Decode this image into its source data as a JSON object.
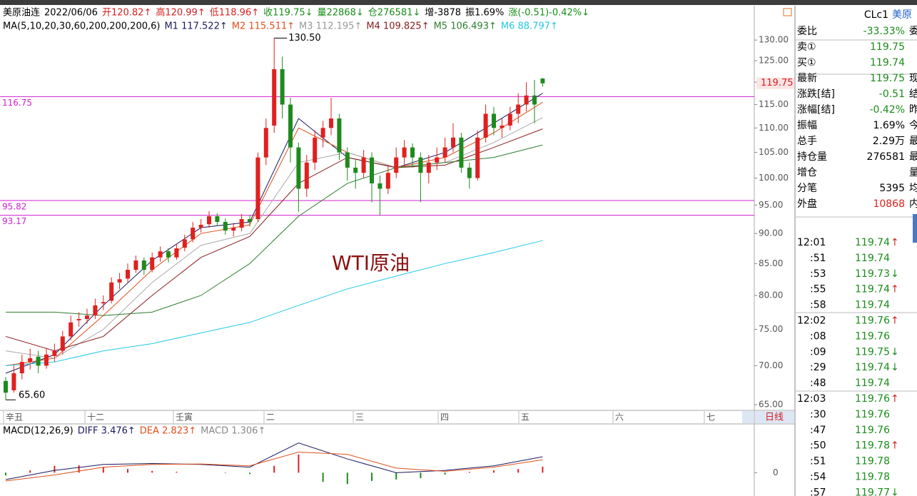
{
  "header": {
    "quote": [
      {
        "text": "美原油连",
        "color": "#000000"
      },
      {
        "text": "2022/06/06",
        "color": "#000000"
      },
      {
        "text": "开120.82↑",
        "color": "#d42020"
      },
      {
        "text": "高120.99↑",
        "color": "#d42020"
      },
      {
        "text": "低118.96↑",
        "color": "#d42020"
      },
      {
        "text": "收119.75↓",
        "color": "#1a8c1a"
      },
      {
        "text": "量22868↓",
        "color": "#1a8c1a"
      },
      {
        "text": "仓276581↓",
        "color": "#1a8c1a"
      },
      {
        "text": "增-3878",
        "color": "#000000"
      },
      {
        "text": "振1.69%",
        "color": "#000000"
      },
      {
        "text": "涨(-0.51)-0.42%↓",
        "color": "#1a8c1a"
      }
    ],
    "ma": [
      {
        "text": "MA(5,10,20,30,60,200,200,200,6)",
        "color": "#000000"
      },
      {
        "text": "M1 117.522↑",
        "color": "#1a1a60"
      },
      {
        "text": "M2 115.511↑",
        "color": "#e0501a"
      },
      {
        "text": "M3 112.195↑",
        "color": "#999999"
      },
      {
        "text": "M4 109.825↑",
        "color": "#8b1a1a"
      },
      {
        "text": "M5 106.493↑",
        "color": "#2e7d2e"
      },
      {
        "text": "M6 88.797↑",
        "color": "#22c8e8"
      }
    ]
  },
  "chart": {
    "type": "candlestick",
    "log_scale": true,
    "ylim": [
      64.3,
      138.4
    ],
    "yticks": [
      {
        "value": 130,
        "label": "130.00"
      },
      {
        "value": 125,
        "label": "125.00"
      },
      {
        "value": 120,
        "label": "120.00"
      },
      {
        "value": 115,
        "label": "115.00"
      },
      {
        "value": 110,
        "label": "110.00"
      },
      {
        "value": 105,
        "label": "105.00"
      },
      {
        "value": 100,
        "label": "100.00"
      },
      {
        "value": 95,
        "label": "95.00"
      },
      {
        "value": 90,
        "label": "90.00"
      },
      {
        "value": 85,
        "label": "85.00"
      },
      {
        "value": 80,
        "label": "80.00"
      },
      {
        "value": 75,
        "label": "75.00"
      },
      {
        "value": 70,
        "label": "70.00"
      },
      {
        "value": 65,
        "label": "65.00"
      }
    ],
    "up_color": "#e0201f",
    "down_color": "#1e8a1e",
    "candles": [
      [
        68,
        68.5,
        65.6,
        66.5
      ],
      [
        66.8,
        70,
        66.5,
        69
      ],
      [
        69,
        71.5,
        68.2,
        70.5
      ],
      [
        70.5,
        72.3,
        69.5,
        71
      ],
      [
        71.2,
        72,
        69,
        70
      ],
      [
        70,
        72.4,
        69.6,
        71.5
      ],
      [
        71.3,
        73,
        70.5,
        72
      ],
      [
        72,
        74.8,
        71.5,
        74
      ],
      [
        74,
        77,
        73.5,
        76
      ],
      [
        76.3,
        77.5,
        75.4,
        76.5
      ],
      [
        76.5,
        78,
        75.8,
        77
      ],
      [
        77,
        79.5,
        76.5,
        78.5
      ],
      [
        78.8,
        80,
        77.8,
        79
      ],
      [
        79.2,
        82.8,
        78.8,
        82
      ],
      [
        82,
        83.5,
        81,
        82.5
      ],
      [
        82.6,
        85,
        82,
        84
      ],
      [
        84,
        86.3,
        83.5,
        85.5
      ],
      [
        85.5,
        86,
        83.2,
        84
      ],
      [
        84,
        86.8,
        83.6,
        86
      ],
      [
        86,
        87.8,
        85.3,
        87
      ],
      [
        87,
        87.5,
        85.2,
        86
      ],
      [
        86,
        88.3,
        85.6,
        87.5
      ],
      [
        87.6,
        89.8,
        87,
        89
      ],
      [
        89,
        92,
        88.5,
        91
      ],
      [
        91,
        92.5,
        90.2,
        91.5
      ],
      [
        91.6,
        93.9,
        91,
        93
      ],
      [
        93,
        93.5,
        91.3,
        92
      ],
      [
        92,
        92.6,
        89.8,
        90.5
      ],
      [
        90.5,
        91.8,
        89.5,
        91
      ],
      [
        91,
        93.4,
        90.4,
        92.5
      ],
      [
        92.5,
        93.2,
        91.2,
        92
      ],
      [
        92.5,
        105,
        92,
        104
      ],
      [
        104,
        112,
        102.5,
        110
      ],
      [
        110.5,
        130.5,
        109,
        123
      ],
      [
        123,
        126,
        112,
        115
      ],
      [
        115,
        116.5,
        103,
        106
      ],
      [
        106,
        107,
        93.8,
        98
      ],
      [
        98,
        104.5,
        96.5,
        103
      ],
      [
        103,
        109.5,
        101.5,
        108
      ],
      [
        108,
        111.5,
        106,
        110
      ],
      [
        110,
        116.5,
        108.5,
        112
      ],
      [
        112,
        113,
        103.5,
        105
      ],
      [
        105,
        106,
        99.5,
        102
      ],
      [
        102,
        103.5,
        98,
        101
      ],
      [
        101,
        105.5,
        100,
        104
      ],
      [
        104,
        105,
        95.5,
        99
      ],
      [
        99,
        100.5,
        93.2,
        98
      ],
      [
        98,
        102.5,
        97,
        101
      ],
      [
        101,
        106,
        100,
        104
      ],
      [
        104,
        107.5,
        102.5,
        106
      ],
      [
        106,
        106.8,
        102,
        104
      ],
      [
        104,
        105,
        95.5,
        101
      ],
      [
        101,
        104.5,
        99,
        103
      ],
      [
        103,
        106,
        101.5,
        104
      ],
      [
        104,
        108,
        103,
        106
      ],
      [
        106,
        111,
        105,
        108
      ],
      [
        108,
        109,
        101,
        102
      ],
      [
        102,
        103,
        98,
        100
      ],
      [
        100,
        109.5,
        99.5,
        108
      ],
      [
        108,
        115,
        107,
        113
      ],
      [
        113,
        114.5,
        108.5,
        110
      ],
      [
        110,
        112,
        108,
        110.5
      ],
      [
        110.5,
        114.5,
        109.5,
        113
      ],
      [
        113,
        117.5,
        111,
        115
      ],
      [
        115,
        120,
        113.5,
        117
      ],
      [
        117,
        120.5,
        111,
        115
      ],
      [
        120.82,
        120.99,
        118.96,
        119.75
      ]
    ],
    "ma": {
      "x": [
        0,
        6,
        12,
        18,
        24,
        30,
        36,
        42,
        48,
        54,
        60,
        66
      ],
      "series": [
        {
          "color": "#1a1a60",
          "values": [
            69,
            71.5,
            78.5,
            85.5,
            91,
            92,
            112,
            104,
            102,
            105,
            111,
            117.5
          ]
        },
        {
          "color": "#e0501a",
          "values": [
            70,
            71,
            77,
            84,
            90,
            91.5,
            110,
            105,
            102,
            104,
            109,
            115.5
          ]
        },
        {
          "color": "#aaaaaa",
          "values": [
            72,
            71,
            75,
            82,
            88,
            90,
            103,
            105,
            102,
            103,
            107,
            112.2
          ]
        },
        {
          "color": "#8b1a1a",
          "values": [
            74,
            72,
            74,
            80,
            86,
            89.5,
            99,
            104,
            102,
            102.5,
            106,
            109.8
          ]
        },
        {
          "color": "#2e7d2e",
          "values": [
            77.5,
            77.5,
            77,
            77.5,
            80,
            85,
            93,
            99,
            102,
            103,
            104,
            106.5
          ]
        },
        {
          "color": "#22c8e8",
          "values": [
            70,
            70.5,
            72,
            73,
            74.5,
            76,
            78.5,
            81,
            83,
            85,
            86.8,
            88.8
          ]
        }
      ]
    },
    "levels": [
      116.75,
      95.82,
      93.17
    ],
    "level_color": "#d020d0",
    "last_price": 119.75,
    "high_label": {
      "value": 130.5,
      "label": "130.50"
    },
    "low_label": {
      "value": 65.6,
      "label": "65.60"
    },
    "watermark": "WTI原油",
    "xaxis_labels": [
      "辛丑",
      "十二",
      "壬寅",
      "二",
      "三",
      "四",
      "五",
      "六",
      "七"
    ]
  },
  "period_button": "日线",
  "macd": {
    "title": [
      {
        "text": "MACD(12,26,9)",
        "color": "#000000"
      },
      {
        "text": "DIFF 3.476↑",
        "color": "#1a1a60"
      },
      {
        "text": "DEA 2.823↑",
        "color": "#e0501a"
      },
      {
        "text": "MACD 1.306↑",
        "color": "#888888"
      }
    ],
    "ylim": [
      -4,
      8
    ],
    "yticks": [
      0
    ],
    "x": [
      0,
      6,
      12,
      18,
      24,
      30,
      36,
      42,
      48,
      54,
      60,
      66
    ],
    "diff": {
      "color": "#1a1a60",
      "values": [
        -1.5,
        0.5,
        1.8,
        2,
        1.8,
        1.2,
        6.5,
        3,
        0,
        0.5,
        1.5,
        3.476
      ]
    },
    "dea": {
      "color": "#e0501a",
      "values": [
        -1.8,
        -0.5,
        1.2,
        1.8,
        1.9,
        1.5,
        4.5,
        4,
        1,
        0.3,
        1.2,
        2.823
      ]
    },
    "hist_x": [
      0,
      3,
      6,
      9,
      12,
      15,
      18,
      21,
      24,
      27,
      30,
      33,
      36,
      39,
      42,
      45,
      48,
      51,
      54,
      57,
      60,
      63,
      66
    ],
    "hist": [
      -0.6,
      0.5,
      1.5,
      1.6,
      1.2,
      0.8,
      0.4,
      0.2,
      0,
      -0.1,
      -0.3,
      1.5,
      4,
      -2,
      -2.5,
      -1.8,
      -1.5,
      -1.2,
      -0.4,
      0.2,
      0.5,
      0.8,
      1.306
    ],
    "pos_color": "#e0201f",
    "neg_color": "#1e8a1e"
  },
  "quote_panel": {
    "code": "CLc1",
    "name": "美原",
    "rows": [
      {
        "label": "委比",
        "value": "-33.33%",
        "color": "#1a8c1a",
        "cut": "委"
      },
      {
        "label": "卖①",
        "value": 119.75,
        "color": "#1a8c1a"
      },
      {
        "label": "买①",
        "value": 119.74,
        "color": "#1a8c1a"
      },
      {
        "label": "最新",
        "value": 119.75,
        "color": "#1a8c1a",
        "cut": "现"
      },
      {
        "label": "涨跌[结]",
        "value": -0.51,
        "color": "#1a8c1a",
        "cut": "结"
      },
      {
        "label": "涨幅[结]",
        "value": "-0.42%",
        "color": "#1a8c1a",
        "cut": "昨"
      },
      {
        "label": "振幅",
        "value": "1.69%",
        "color": "#000000",
        "cut": "今"
      },
      {
        "label": "总手",
        "value": "2.29万",
        "color": "#000000",
        "cut": "最"
      },
      {
        "label": "持仓量",
        "value": 276581,
        "color": "#000000",
        "cut": "最"
      },
      {
        "label": "增仓",
        "cut": "量"
      },
      {
        "label": "分笔",
        "value": 5395,
        "color": "#000000",
        "cut": "均"
      },
      {
        "label": "外盘",
        "value": 10868,
        "color": "#e0201f",
        "cut": "内"
      }
    ]
  },
  "trades": [
    {
      "time": "12:01",
      "price": 119.74,
      "arrow": "↑"
    },
    {
      "time": ":51",
      "price": 119.74
    },
    {
      "time": ":53",
      "price": 119.73,
      "arrow": "↓"
    },
    {
      "time": ":55",
      "price": 119.74,
      "arrow": "↑"
    },
    {
      "time": ":58",
      "price": 119.74
    },
    {
      "time": "12:02",
      "price": 119.76,
      "arrow": "↑"
    },
    {
      "time": ":08",
      "price": 119.76
    },
    {
      "time": ":09",
      "price": 119.75,
      "arrow": "↓"
    },
    {
      "time": ":29",
      "price": 119.74,
      "arrow": "↓"
    },
    {
      "time": ":48",
      "price": 119.74
    },
    {
      "time": "12:03",
      "price": 119.76,
      "arrow": "↑"
    },
    {
      "time": ":30",
      "price": 119.76
    },
    {
      "time": ":47",
      "price": 119.76
    },
    {
      "time": ":50",
      "price": 119.78,
      "arrow": "↑"
    },
    {
      "time": ":51",
      "price": 119.78
    },
    {
      "time": ":54",
      "price": 119.78
    },
    {
      "time": ":57",
      "price": 119.77,
      "arrow": "↓"
    }
  ]
}
